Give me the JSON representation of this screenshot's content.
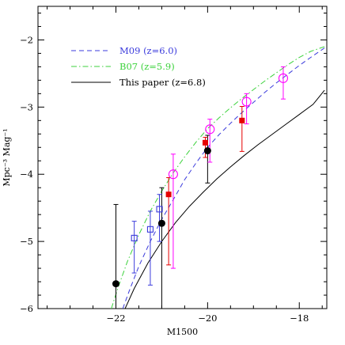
{
  "chart_data": {
    "type": "scatter",
    "xlabel": "M1500",
    "ylabel": "Mpc⁻³ Mag⁻¹",
    "xlim": [
      -23.7,
      -17.4
    ],
    "ylim": [
      -6,
      -1.5
    ],
    "x_ticks": [
      -22,
      -20,
      -18
    ],
    "x_tick_labels": [
      "−22",
      "−20",
      "−18"
    ],
    "y_ticks": [
      -6,
      -5,
      -4,
      -3,
      -2
    ],
    "y_tick_labels": [
      "−6",
      "−5",
      "−4",
      "−3",
      "−2"
    ],
    "grid": false,
    "legend_position": "top-left",
    "legend": [
      {
        "label": "M09 (z=6.0)",
        "color": "#3b3bdc",
        "dash": "dashed"
      },
      {
        "label": "B07 (z=5.9)",
        "color": "#3cd23c",
        "dash": "dash-dot"
      },
      {
        "label": "This paper (z=6.8)",
        "color": "#000000",
        "dash": "solid"
      }
    ],
    "curves": [
      {
        "label": "M09 (z=6.0)",
        "color": "#3b3bdc",
        "dash": "dashed",
        "x": [
          -21.85,
          -21.7,
          -21.5,
          -21.25,
          -21.0,
          -20.75,
          -20.5,
          -20.25,
          -20.0,
          -19.75,
          -19.5,
          -19.25,
          -19.0,
          -18.75,
          -18.5,
          -18.25,
          -18.0,
          -17.75,
          -17.45
        ],
        "y": [
          -6.0,
          -5.72,
          -5.37,
          -5.0,
          -4.67,
          -4.38,
          -4.08,
          -3.83,
          -3.6,
          -3.41,
          -3.24,
          -3.08,
          -2.93,
          -2.78,
          -2.64,
          -2.51,
          -2.38,
          -2.26,
          -2.12
        ]
      },
      {
        "label": "B07 (z=5.9)",
        "color": "#3cd23c",
        "dash": "dash-dot",
        "x": [
          -22.1,
          -21.95,
          -21.75,
          -21.5,
          -21.25,
          -21.0,
          -20.75,
          -20.5,
          -20.25,
          -20.0,
          -19.75,
          -19.5,
          -19.25,
          -19.0,
          -18.75,
          -18.5,
          -18.25,
          -18.0,
          -17.75,
          -17.45
        ],
        "y": [
          -6.0,
          -5.68,
          -5.3,
          -4.9,
          -4.55,
          -4.25,
          -3.98,
          -3.74,
          -3.52,
          -3.32,
          -3.16,
          -3.01,
          -2.87,
          -2.74,
          -2.61,
          -2.49,
          -2.37,
          -2.26,
          -2.17,
          -2.1
        ]
      },
      {
        "label": "This paper (z=6.8)",
        "color": "#000000",
        "dash": "solid",
        "x": [
          -21.8,
          -21.6,
          -21.3,
          -21.0,
          -20.7,
          -20.4,
          -20.1,
          -19.8,
          -19.5,
          -19.2,
          -18.9,
          -18.6,
          -18.3,
          -18.0,
          -17.7,
          -17.45
        ],
        "y": [
          -6.0,
          -5.7,
          -5.32,
          -5.0,
          -4.72,
          -4.48,
          -4.27,
          -4.07,
          -3.89,
          -3.72,
          -3.56,
          -3.41,
          -3.26,
          -3.11,
          -2.96,
          -2.75
        ]
      }
    ],
    "points": [
      {
        "series": "black-circles",
        "marker": "filled-circle",
        "color": "#000000",
        "x": -22.0,
        "y": -5.63,
        "yerr_low": -6.0,
        "yerr_high": -4.45
      },
      {
        "series": "black-circles",
        "marker": "filled-circle",
        "color": "#000000",
        "x": -21.0,
        "y": -4.73,
        "yerr_low": -6.0,
        "yerr_high": -4.2
      },
      {
        "series": "black-circles",
        "marker": "filled-circle",
        "color": "#000000",
        "x": -20.0,
        "y": -3.65,
        "yerr_low": -4.13,
        "yerr_high": -3.42
      },
      {
        "series": "blue-squares",
        "marker": "open-square",
        "color": "#3b3bdc",
        "x": -21.6,
        "y": -4.95,
        "yerr_low": -5.47,
        "yerr_high": -4.7
      },
      {
        "series": "blue-squares",
        "marker": "open-square",
        "color": "#3b3bdc",
        "x": -21.25,
        "y": -4.82,
        "yerr_low": -5.65,
        "yerr_high": -4.55
      },
      {
        "series": "blue-squares",
        "marker": "open-square",
        "color": "#3b3bdc",
        "x": -21.05,
        "y": -4.52,
        "yerr_low": -5.0,
        "yerr_high": -4.3
      },
      {
        "series": "red-squares",
        "marker": "filled-square",
        "color": "#e60000",
        "x": -20.85,
        "y": -4.3,
        "yerr_low": -5.35,
        "yerr_high": -4.05
      },
      {
        "series": "red-squares",
        "marker": "filled-square",
        "color": "#e60000",
        "x": -20.05,
        "y": -3.53,
        "yerr_low": -3.75,
        "yerr_high": -3.45
      },
      {
        "series": "red-squares",
        "marker": "filled-square",
        "color": "#e60000",
        "x": -19.25,
        "y": -3.2,
        "yerr_low": -3.66,
        "yerr_high": -2.99
      },
      {
        "series": "magenta-circles",
        "marker": "open-circle",
        "color": "#ff00ff",
        "x": -20.75,
        "y": -4.0,
        "yerr_low": -5.4,
        "yerr_high": -3.7
      },
      {
        "series": "magenta-circles",
        "marker": "open-circle",
        "color": "#ff00ff",
        "x": -19.95,
        "y": -3.33,
        "yerr_low": -3.82,
        "yerr_high": -3.18
      },
      {
        "series": "magenta-circles",
        "marker": "open-circle",
        "color": "#ff00ff",
        "x": -19.15,
        "y": -2.92,
        "yerr_low": -3.25,
        "yerr_high": -2.8
      },
      {
        "series": "magenta-circles",
        "marker": "open-circle",
        "color": "#ff00ff",
        "x": -18.35,
        "y": -2.57,
        "yerr_low": -2.88,
        "yerr_high": -2.4
      }
    ]
  }
}
